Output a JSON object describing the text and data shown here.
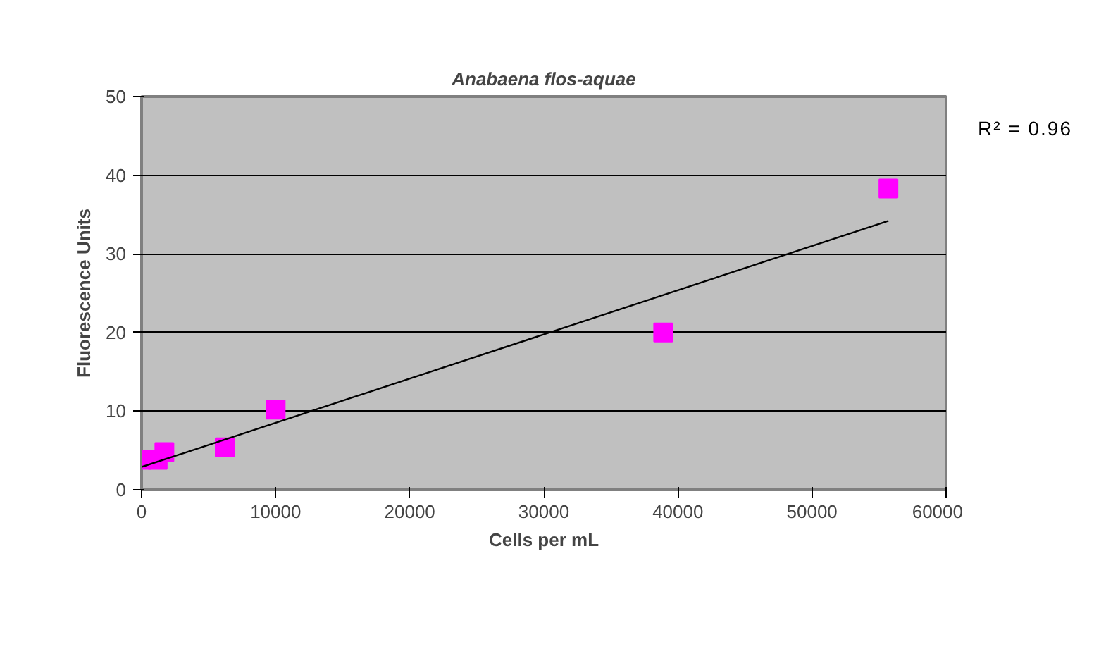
{
  "chart_data": {
    "type": "scatter",
    "title": "Anabaena flos-aquae",
    "xlabel": "Cells per mL",
    "ylabel": "Fluorescence Units",
    "xlim": [
      0,
      60000
    ],
    "ylim": [
      0,
      50
    ],
    "xticks": [
      0,
      10000,
      20000,
      30000,
      40000,
      50000,
      60000
    ],
    "yticks": [
      0,
      10,
      20,
      30,
      40,
      50
    ],
    "grid": "y",
    "marker": "square",
    "annotations": [
      "R² = 0.96"
    ],
    "series": [
      {
        "color": "#ff00ff",
        "x": [
          0,
          1200,
          1700,
          6200,
          10000,
          38900,
          55700
        ],
        "values": [
          3.8,
          3.8,
          4.8,
          5.4,
          10.2,
          20,
          38.3
        ]
      },
      {
        "type": "line",
        "marker": "none",
        "color": "#000000",
        "x": [
          0,
          55700
        ],
        "values": [
          2.9,
          34.2
        ]
      }
    ]
  }
}
